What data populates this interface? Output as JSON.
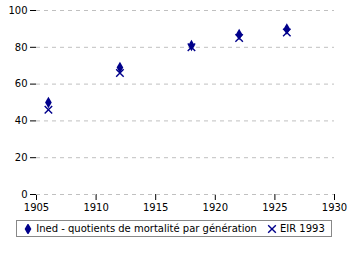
{
  "chart_data": {
    "type": "scatter",
    "x": [
      1906,
      1912,
      1918,
      1922,
      1926
    ],
    "series": [
      {
        "name": "Ined - quotients de mortalité par génération",
        "color": "#00008B",
        "marker": "diamond",
        "values": [
          50,
          69,
          81,
          87,
          90
        ]
      },
      {
        "name": "EIR 1993",
        "color": "#00008B",
        "marker": "x",
        "values": [
          46,
          66,
          80,
          85,
          88
        ]
      }
    ],
    "xlim": [
      1905,
      1930
    ],
    "ylim": [
      0,
      100
    ],
    "xticks": [
      1905,
      1910,
      1915,
      1920,
      1925,
      1930
    ],
    "yticks": [
      0,
      20,
      40,
      60,
      80,
      100
    ],
    "grid": "y",
    "legend": "bottom"
  }
}
